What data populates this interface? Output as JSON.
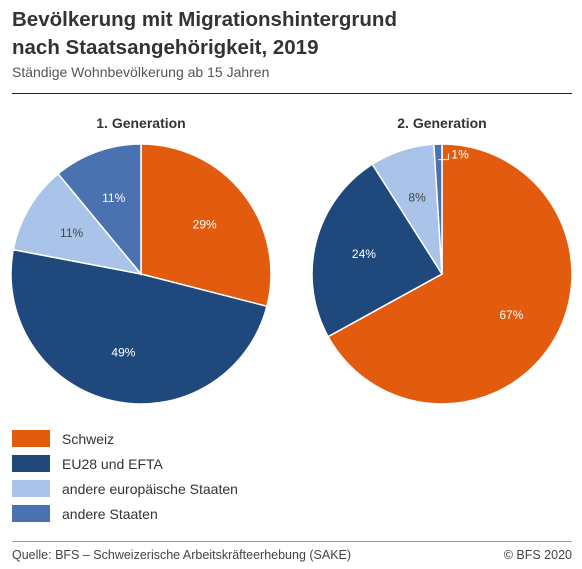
{
  "title_line1": "Bevölkerung mit Migrationshintergrund",
  "title_line2": "nach Staatsangehörigkeit, 2019",
  "subtitle": "Ständige Wohnbevölkerung ab 15 Jahren",
  "source": "Quelle: BFS – Schweizerische Arbeitskräfteerhebung (SAKE)",
  "copyright": "© BFS 2020",
  "colors": {
    "schweiz": "#e35b0e",
    "eu28": "#1f497d",
    "europe_other": "#a9c4e8",
    "other": "#4a72b0"
  },
  "chart_data": [
    {
      "type": "pie",
      "title": "1. Generation",
      "categories": [
        "Schweiz",
        "EU28 und EFTA",
        "andere europäische Staaten",
        "andere Staaten"
      ],
      "values": [
        29,
        49,
        11,
        11
      ],
      "labels": [
        "29%",
        "49%",
        "11%",
        "11%"
      ]
    },
    {
      "type": "pie",
      "title": "2. Generation",
      "categories": [
        "Schweiz",
        "EU28 und EFTA",
        "andere europäische Staaten",
        "andere Staaten"
      ],
      "values": [
        67,
        24,
        8,
        1
      ],
      "labels": [
        "67%",
        "24%",
        "8%",
        "1%"
      ]
    }
  ],
  "legend": [
    {
      "label": "Schweiz",
      "color_key": "schweiz"
    },
    {
      "label": "EU28 und EFTA",
      "color_key": "eu28"
    },
    {
      "label": "andere europäische Staaten",
      "color_key": "europe_other"
    },
    {
      "label": "andere Staaten",
      "color_key": "other"
    }
  ]
}
